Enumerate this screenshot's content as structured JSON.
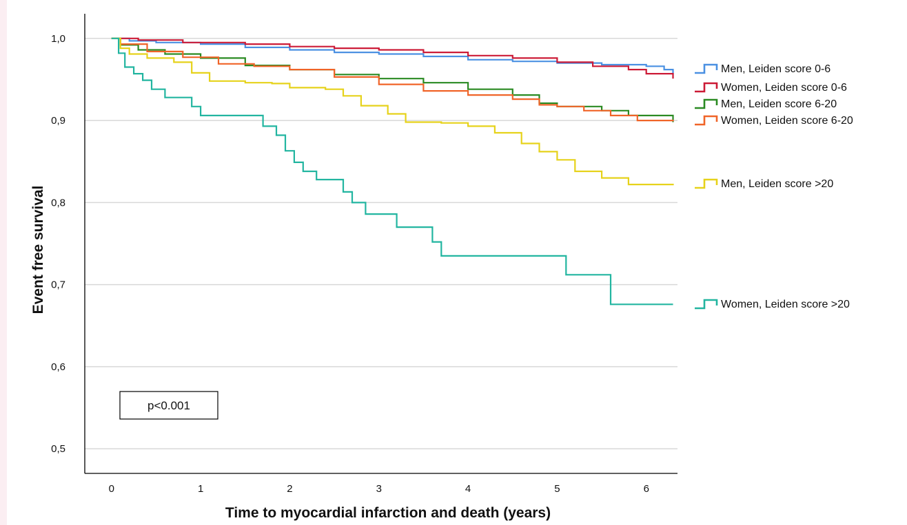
{
  "chart_data": {
    "type": "line",
    "step": true,
    "xlabel": "Time to myocardial infarction and death (years)",
    "ylabel": "Event free survival",
    "xlim": [
      -0.3,
      6.35
    ],
    "ylim": [
      0.47,
      1.03
    ],
    "x_ticks": [
      0,
      1,
      2,
      3,
      4,
      5,
      6
    ],
    "x_tick_labels": [
      "0",
      "1",
      "2",
      "3",
      "4",
      "5",
      "6"
    ],
    "y_ticks": [
      0.5,
      0.6,
      0.7,
      0.8,
      0.9,
      1.0
    ],
    "y_tick_labels": [
      "0,5",
      "0,6",
      "0,7",
      "0,8",
      "0,9",
      "1,0"
    ],
    "grid": "horizontal",
    "legend": "right",
    "annotation": "p<0.001",
    "series": [
      {
        "name": "Men, Leiden score 0-6",
        "color": "#4a90e2",
        "points": [
          [
            0,
            1.0
          ],
          [
            0.2,
            0.997
          ],
          [
            0.5,
            0.995
          ],
          [
            1.0,
            0.993
          ],
          [
            1.5,
            0.989
          ],
          [
            2.0,
            0.986
          ],
          [
            2.5,
            0.983
          ],
          [
            3.0,
            0.981
          ],
          [
            3.5,
            0.978
          ],
          [
            4.0,
            0.974
          ],
          [
            4.5,
            0.972
          ],
          [
            5.0,
            0.97
          ],
          [
            5.5,
            0.968
          ],
          [
            6.0,
            0.966
          ],
          [
            6.2,
            0.962
          ],
          [
            6.3,
            0.956
          ]
        ]
      },
      {
        "name": "Women, Leiden score 0-6",
        "color": "#cc1a36",
        "points": [
          [
            0,
            1.0
          ],
          [
            0.3,
            0.998
          ],
          [
            0.8,
            0.995
          ],
          [
            1.5,
            0.993
          ],
          [
            2.0,
            0.99
          ],
          [
            2.5,
            0.988
          ],
          [
            3.0,
            0.986
          ],
          [
            3.5,
            0.983
          ],
          [
            4.0,
            0.979
          ],
          [
            4.5,
            0.976
          ],
          [
            5.0,
            0.971
          ],
          [
            5.4,
            0.966
          ],
          [
            5.8,
            0.962
          ],
          [
            6.0,
            0.957
          ],
          [
            6.3,
            0.951
          ]
        ]
      },
      {
        "name": "Men, Leiden score 6-20",
        "color": "#2a8a22",
        "points": [
          [
            0,
            1.0
          ],
          [
            0.1,
            0.992
          ],
          [
            0.3,
            0.986
          ],
          [
            0.6,
            0.981
          ],
          [
            1.0,
            0.976
          ],
          [
            1.5,
            0.967
          ],
          [
            2.0,
            0.962
          ],
          [
            2.5,
            0.956
          ],
          [
            3.0,
            0.951
          ],
          [
            3.5,
            0.946
          ],
          [
            4.0,
            0.938
          ],
          [
            4.5,
            0.931
          ],
          [
            4.8,
            0.921
          ],
          [
            5.0,
            0.917
          ],
          [
            5.5,
            0.912
          ],
          [
            5.8,
            0.906
          ],
          [
            6.3,
            0.898
          ]
        ]
      },
      {
        "name": "Women, Leiden score 6-20",
        "color": "#f06428",
        "points": [
          [
            0,
            1.0
          ],
          [
            0.1,
            0.993
          ],
          [
            0.4,
            0.984
          ],
          [
            0.8,
            0.977
          ],
          [
            1.2,
            0.969
          ],
          [
            1.6,
            0.966
          ],
          [
            2.0,
            0.962
          ],
          [
            2.5,
            0.953
          ],
          [
            3.0,
            0.944
          ],
          [
            3.5,
            0.936
          ],
          [
            4.0,
            0.931
          ],
          [
            4.5,
            0.926
          ],
          [
            4.8,
            0.919
          ],
          [
            5.0,
            0.917
          ],
          [
            5.3,
            0.912
          ],
          [
            5.6,
            0.906
          ],
          [
            5.9,
            0.9
          ],
          [
            6.3,
            0.899
          ]
        ]
      },
      {
        "name": "Men, Leiden score >20",
        "color": "#e6d21a",
        "points": [
          [
            0,
            1.0
          ],
          [
            0.1,
            0.988
          ],
          [
            0.2,
            0.981
          ],
          [
            0.4,
            0.976
          ],
          [
            0.7,
            0.971
          ],
          [
            0.9,
            0.958
          ],
          [
            1.1,
            0.948
          ],
          [
            1.5,
            0.946
          ],
          [
            1.8,
            0.945
          ],
          [
            2.0,
            0.94
          ],
          [
            2.4,
            0.938
          ],
          [
            2.6,
            0.93
          ],
          [
            2.8,
            0.918
          ],
          [
            3.1,
            0.908
          ],
          [
            3.3,
            0.898
          ],
          [
            3.7,
            0.897
          ],
          [
            4.0,
            0.893
          ],
          [
            4.3,
            0.885
          ],
          [
            4.6,
            0.872
          ],
          [
            4.8,
            0.862
          ],
          [
            5.0,
            0.852
          ],
          [
            5.2,
            0.838
          ],
          [
            5.5,
            0.83
          ],
          [
            5.8,
            0.822
          ],
          [
            6.3,
            0.821
          ]
        ]
      },
      {
        "name": "Women, Leiden score >20",
        "color": "#22b5a0",
        "points": [
          [
            0,
            1.0
          ],
          [
            0.08,
            0.982
          ],
          [
            0.15,
            0.965
          ],
          [
            0.25,
            0.957
          ],
          [
            0.35,
            0.949
          ],
          [
            0.45,
            0.938
          ],
          [
            0.6,
            0.928
          ],
          [
            0.9,
            0.917
          ],
          [
            1.0,
            0.906
          ],
          [
            1.2,
            0.906
          ],
          [
            1.7,
            0.893
          ],
          [
            1.85,
            0.882
          ],
          [
            1.95,
            0.863
          ],
          [
            2.05,
            0.849
          ],
          [
            2.15,
            0.838
          ],
          [
            2.3,
            0.828
          ],
          [
            2.6,
            0.813
          ],
          [
            2.7,
            0.8
          ],
          [
            2.85,
            0.786
          ],
          [
            3.2,
            0.77
          ],
          [
            3.6,
            0.752
          ],
          [
            3.7,
            0.735
          ],
          [
            5.1,
            0.712
          ],
          [
            5.6,
            0.676
          ],
          [
            6.3,
            0.676
          ]
        ]
      }
    ]
  }
}
